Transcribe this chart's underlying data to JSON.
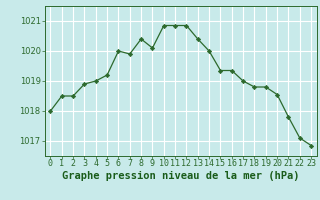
{
  "x": [
    0,
    1,
    2,
    3,
    4,
    5,
    6,
    7,
    8,
    9,
    10,
    11,
    12,
    13,
    14,
    15,
    16,
    17,
    18,
    19,
    20,
    21,
    22,
    23
  ],
  "y": [
    1018.0,
    1018.5,
    1018.5,
    1018.9,
    1019.0,
    1019.2,
    1020.0,
    1019.9,
    1020.4,
    1020.1,
    1020.85,
    1020.85,
    1020.85,
    1020.4,
    1020.0,
    1019.35,
    1019.35,
    1019.0,
    1018.8,
    1018.8,
    1018.55,
    1017.8,
    1017.1,
    1016.85
  ],
  "line_color": "#2d6a2d",
  "marker_color": "#2d6a2d",
  "bg_color": "#c8eaea",
  "grid_color": "#ffffff",
  "xlabel": "Graphe pression niveau de la mer (hPa)",
  "xlabel_color": "#1a5c1a",
  "tick_color": "#2d6a2d",
  "ylim": [
    1016.5,
    1021.5
  ],
  "yticks": [
    1017,
    1018,
    1019,
    1020,
    1021
  ],
  "xticks": [
    0,
    1,
    2,
    3,
    4,
    5,
    6,
    7,
    8,
    9,
    10,
    11,
    12,
    13,
    14,
    15,
    16,
    17,
    18,
    19,
    20,
    21,
    22,
    23
  ],
  "tick_fontsize": 6,
  "xlabel_fontsize": 7.5
}
